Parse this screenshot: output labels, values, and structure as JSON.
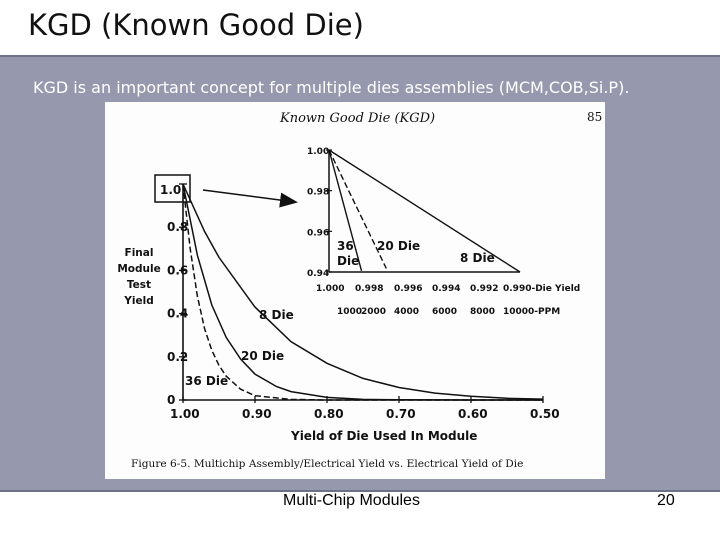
{
  "slide": {
    "title": "KGD (Known Good Die)",
    "caption": "KGD is an important concept for multiple dies assemblies (MCM,COB,Si.P).",
    "footer_text": "Multi-Chip Modules",
    "page_number": "20"
  },
  "colors": {
    "band": "#9699ad",
    "ink": "#111111",
    "paper": "#fdfdfd"
  },
  "chart_data": [
    {
      "type": "line",
      "header": "Known Good Die (KGD)",
      "book_page": "85",
      "figure_caption": "Figure 6-5. Multichip Assembly/Electrical Yield vs. Electrical Yield of Die",
      "xlabel": "Yield of Die Used In Module",
      "ylabel_lines": [
        "Final",
        "Module",
        "Test",
        "Yield"
      ],
      "xlim": [
        1.0,
        0.5
      ],
      "ylim": [
        0,
        1.0
      ],
      "x_ticks": [
        "1.00",
        "0.90",
        "0.80",
        "0.70",
        "0.60",
        "0.50"
      ],
      "y_ticks": [
        "0",
        "0.2",
        "0.4",
        "0.6",
        "0.8",
        "1.0"
      ],
      "x_tick_values": [
        1.0,
        0.9,
        0.8,
        0.7,
        0.6,
        0.5
      ],
      "y_tick_values": [
        0,
        0.2,
        0.4,
        0.6,
        0.8,
        1.0
      ],
      "series": [
        {
          "name": "8 Die",
          "style": "solid",
          "x": [
            1.0,
            0.97,
            0.95,
            0.9,
            0.85,
            0.8,
            0.75,
            0.7,
            0.65,
            0.6,
            0.55,
            0.5
          ],
          "y": [
            1.0,
            0.78,
            0.66,
            0.43,
            0.27,
            0.17,
            0.1,
            0.058,
            0.032,
            0.017,
            0.008,
            0.004
          ]
        },
        {
          "name": "20 Die",
          "style": "solid",
          "x": [
            1.0,
            0.98,
            0.96,
            0.94,
            0.92,
            0.9,
            0.87,
            0.85,
            0.8,
            0.75,
            0.7,
            0.6,
            0.5
          ],
          "y": [
            1.0,
            0.67,
            0.44,
            0.29,
            0.19,
            0.12,
            0.062,
            0.039,
            0.012,
            0.003,
            0.001,
            0.0,
            0.0
          ]
        },
        {
          "name": "36 Die",
          "style": "dashed",
          "x": [
            1.0,
            0.99,
            0.98,
            0.97,
            0.96,
            0.95,
            0.94,
            0.92,
            0.9,
            0.85,
            0.8,
            0.7,
            0.5
          ],
          "y": [
            1.0,
            0.7,
            0.48,
            0.33,
            0.23,
            0.16,
            0.11,
            0.05,
            0.02,
            0.003,
            0.0,
            0.0,
            0.0
          ]
        }
      ],
      "callout_label": "1.0"
    },
    {
      "type": "line",
      "title": "",
      "x_ticks": [
        "1.000",
        "0.998",
        "0.996",
        "0.994",
        "0.992",
        "0.990"
      ],
      "x_tick_suffix": "-Die Yield",
      "ppm_ticks": [
        "1000",
        "2000",
        "4000",
        "6000",
        "8000",
        "10000"
      ],
      "ppm_suffix": "-PPM",
      "y_ticks": [
        "1.00",
        "0.98",
        "0.96",
        "0.94"
      ],
      "xlim": [
        1.0,
        0.99
      ],
      "ylim": [
        0.94,
        1.0
      ],
      "series": [
        {
          "name": "8 Die",
          "style": "solid",
          "x": [
            1.0,
            0.99
          ],
          "y": [
            1.0,
            0.9227
          ]
        },
        {
          "name": "20 Die",
          "style": "dashed",
          "x": [
            1.0,
            0.997
          ],
          "y": [
            1.0,
            0.9417
          ]
        },
        {
          "name": "36 Die",
          "style": "solid",
          "x": [
            1.0,
            0.9983
          ],
          "y": [
            1.0,
            0.9406
          ]
        }
      ],
      "label_36": [
        "36",
        "Die"
      ]
    }
  ]
}
